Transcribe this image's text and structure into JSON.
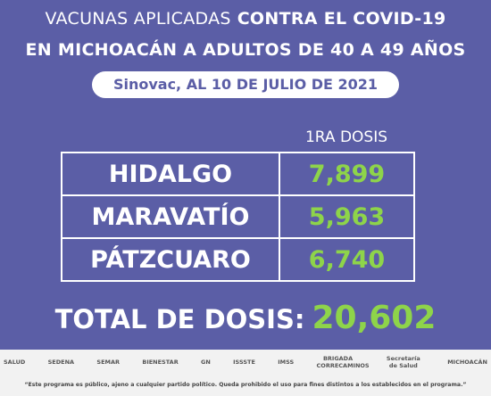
{
  "header": {
    "title_regular": "VACUNAS APLICADAS",
    "title_bold": "CONTRA EL COVID-19",
    "title_line2": "EN MICHOACÁN A ADULTOS DE 40 A 49 AÑOS",
    "subtitle": "Sinovac, AL 10 DE JULIO DE 2021"
  },
  "table": {
    "column_header": "1RA DOSIS",
    "rows": [
      [
        "HIDALGO",
        "7,899"
      ],
      [
        "MARAVATÍO",
        "5,963"
      ],
      [
        "PÁTZCUARO",
        "6,740"
      ]
    ]
  },
  "total": {
    "label": "TOTAL DE DOSIS:",
    "value": "20,602"
  },
  "logos": [
    "SALUD",
    "SEDENA",
    "SEMAR",
    "BIENESTAR",
    "GN",
    "ISSSTE",
    "IMSS",
    "BRIGADA CORRECAMINOS",
    "Secretaría de Salud",
    "MICHOACÁN"
  ],
  "footer": {
    "disclaimer": "“Este programa es público, ajeno a cualquier partido político. Queda prohibido el uso para fines distintos a los establecidos en el programa.”"
  }
}
